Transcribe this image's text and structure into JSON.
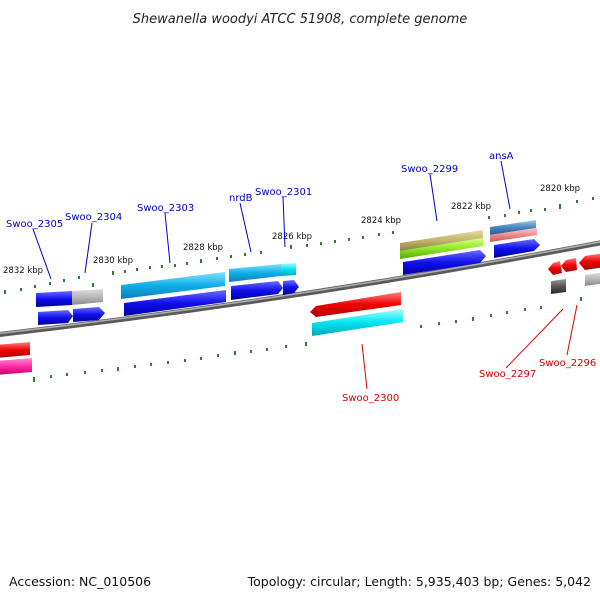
{
  "title": "Shewanella woodyi ATCC 51908, complete genome",
  "footer": {
    "accession": "Accession: NC_010506",
    "summary": "Topology: circular; Length: 5,935,403 bp; Genes: 5,042"
  },
  "ticks": [
    "2832 kbp",
    "2830 kbp",
    "2828 kbp",
    "2826 kbp",
    "2824 kbp",
    "2822 kbp",
    "2820 kbp"
  ],
  "genes": [
    {
      "name": "Swoo_2305",
      "strand": "+",
      "color": "#1a1aff"
    },
    {
      "name": "Swoo_2304",
      "strand": "+",
      "color": "#1a1aff"
    },
    {
      "name": "Swoo_2303",
      "strand": "+",
      "color": "#1a1aff"
    },
    {
      "name": "nrdB",
      "strand": "+",
      "color": "#1a1aff"
    },
    {
      "name": "Swoo_2301",
      "strand": "+",
      "color": "#1a1aff"
    },
    {
      "name": "Swoo_2300",
      "strand": "-",
      "color": "#ee0000"
    },
    {
      "name": "Swoo_2299",
      "strand": "+",
      "color": "#1a1aff"
    },
    {
      "name": "ansA",
      "strand": "+",
      "color": "#1a1aff"
    },
    {
      "name": "Swoo_2297",
      "strand": "-",
      "color": "#ee0000"
    },
    {
      "name": "Swoo_2296",
      "strand": "-",
      "color": "#ee0000"
    }
  ],
  "colors": {
    "forward_label": "#0000cc",
    "reverse_label": "#dd0000",
    "backbone": "#888888",
    "tick": "#2e7d32"
  }
}
